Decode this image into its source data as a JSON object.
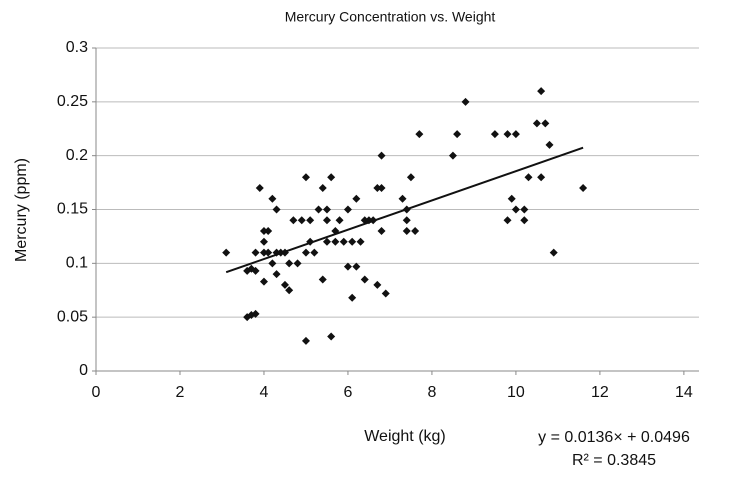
{
  "chart_data": {
    "type": "scatter",
    "title": "Mercury Concentration vs. Weight",
    "x_label": "Weight (kg)",
    "y_label": "Mercury (ppm)",
    "color": "#111111",
    "x": [
      3.1,
      3.6,
      3.7,
      3.8,
      3.6,
      3.7,
      3.8,
      3.8,
      3.9,
      4.0,
      4.0,
      4.0,
      4.1,
      4.1,
      4.2,
      4.2,
      4.3,
      4.3,
      4.3,
      4.4,
      4.5,
      4.5,
      4.6,
      4.6,
      4.7,
      4.8,
      4.9,
      5.0,
      5.0,
      5.1,
      5.1,
      5.2,
      5.3,
      5.4,
      5.4,
      5.5,
      5.5,
      5.5,
      5.6,
      5.6,
      5.7,
      5.7,
      5.8,
      5.9,
      6.0,
      6.0,
      6.1,
      6.1,
      6.2,
      6.2,
      6.3,
      6.4,
      6.4,
      6.5,
      6.7,
      6.7,
      6.8,
      6.8,
      6.9,
      6.8,
      7.3,
      7.4,
      7.4,
      7.5,
      7.6,
      7.7,
      8.5,
      8.6,
      8.8,
      9.5,
      9.8,
      9.8,
      9.9,
      10.0,
      10.0,
      10.2,
      10.2,
      10.3,
      10.5,
      10.6,
      10.6,
      10.7,
      10.8,
      10.9,
      11.6,
      7.4,
      6.6,
      5.0,
      4.0
    ],
    "values": [
      0.11,
      0.05,
      0.052,
      0.053,
      0.093,
      0.095,
      0.093,
      0.11,
      0.17,
      0.13,
      0.11,
      0.083,
      0.13,
      0.11,
      0.16,
      0.1,
      0.15,
      0.11,
      0.09,
      0.11,
      0.08,
      0.11,
      0.075,
      0.1,
      0.14,
      0.1,
      0.14,
      0.18,
      0.028,
      0.12,
      0.14,
      0.11,
      0.15,
      0.17,
      0.085,
      0.12,
      0.15,
      0.14,
      0.18,
      0.032,
      0.13,
      0.12,
      0.14,
      0.12,
      0.15,
      0.097,
      0.12,
      0.068,
      0.16,
      0.097,
      0.12,
      0.14,
      0.085,
      0.14,
      0.17,
      0.08,
      0.2,
      0.13,
      0.072,
      0.17,
      0.16,
      0.14,
      0.13,
      0.18,
      0.13,
      0.22,
      0.2,
      0.22,
      0.25,
      0.22,
      0.22,
      0.14,
      0.16,
      0.22,
      0.15,
      0.15,
      0.14,
      0.18,
      0.23,
      0.18,
      0.26,
      0.23,
      0.21,
      0.11,
      0.17,
      0.15,
      0.14,
      0.11,
      0.12
    ],
    "xlim": [
      0,
      14.36
    ],
    "xticks": [
      0,
      2,
      4,
      6,
      8,
      10,
      12,
      14
    ],
    "ylim": [
      0,
      0.3
    ],
    "yticks": [
      0,
      0.05,
      0.1,
      0.15,
      0.2,
      0.25,
      0.3
    ],
    "grid": true,
    "trendline": {
      "slope": 0.0136,
      "intercept": 0.0496,
      "equation": "y = 0.0136× + 0.0496",
      "r_squared": "R² = 0.3845"
    }
  }
}
